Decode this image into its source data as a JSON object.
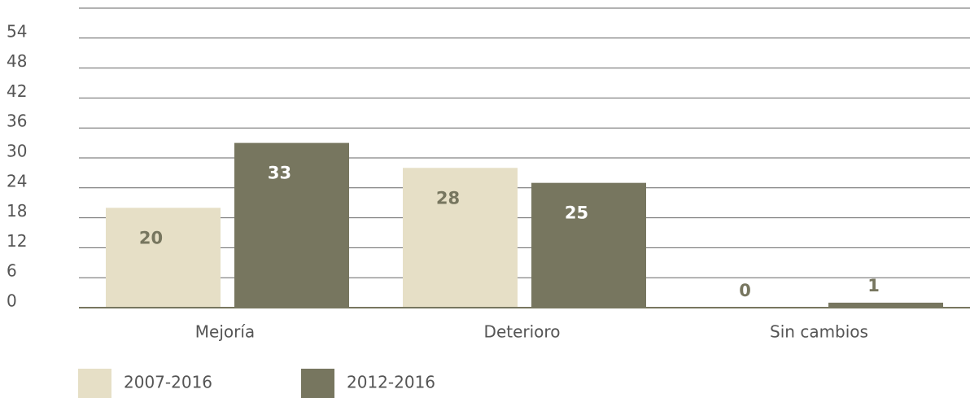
{
  "chart_data": {
    "type": "bar",
    "categories": [
      "Mejoría",
      "Deterioro",
      "Sin cambios"
    ],
    "series": [
      {
        "name": "2007-2016",
        "color": "#e6dfc6",
        "values": [
          20,
          28,
          0
        ]
      },
      {
        "name": "2012-2016",
        "color": "#77765f",
        "values": [
          33,
          25,
          1
        ]
      }
    ],
    "ylim": [
      0,
      60
    ],
    "yticks": [
      0,
      6,
      12,
      18,
      24,
      30,
      36,
      42,
      48,
      54
    ],
    "grid": true
  }
}
